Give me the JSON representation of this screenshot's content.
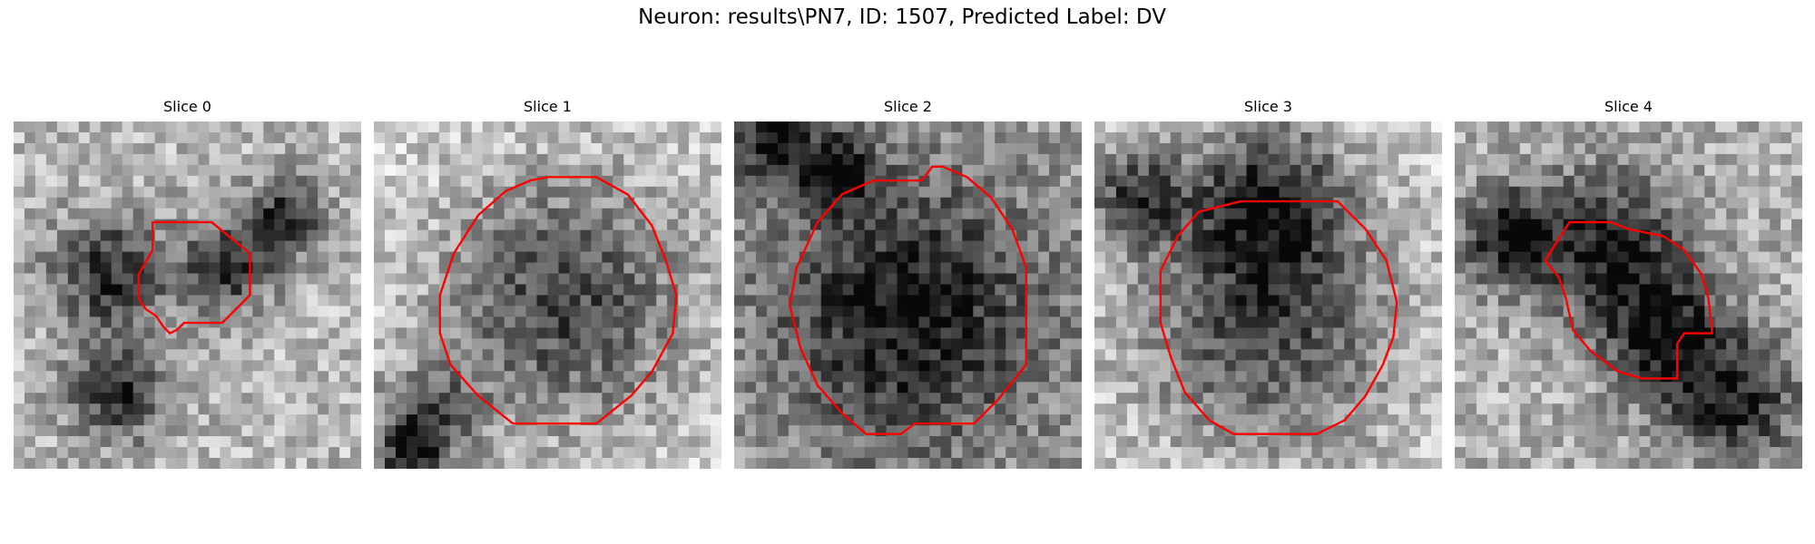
{
  "figure": {
    "title": "Neuron: results\\PN7, ID: 1507, Predicted Label: DV",
    "contour_color": "#ff0000"
  },
  "slices": [
    {
      "title": "Slice 0",
      "intensity_profile": {
        "seed": 11,
        "dark_blobs": [
          [
            0.28,
            0.44,
            0.12
          ],
          [
            0.3,
            0.78,
            0.1
          ],
          [
            0.62,
            0.42,
            0.09
          ],
          [
            0.78,
            0.28,
            0.08
          ]
        ],
        "base": 0.72
      },
      "contour": [
        [
          0.4,
          0.29
        ],
        [
          0.57,
          0.29
        ],
        [
          0.68,
          0.38
        ],
        [
          0.68,
          0.5
        ],
        [
          0.6,
          0.58
        ],
        [
          0.49,
          0.58
        ],
        [
          0.47,
          0.6
        ],
        [
          0.45,
          0.61
        ],
        [
          0.43,
          0.59
        ],
        [
          0.41,
          0.56
        ],
        [
          0.38,
          0.54
        ],
        [
          0.36,
          0.51
        ],
        [
          0.36,
          0.44
        ],
        [
          0.4,
          0.37
        ]
      ]
    },
    {
      "title": "Slice 1",
      "intensity_profile": {
        "seed": 23,
        "dark_blobs": [
          [
            0.55,
            0.52,
            0.25
          ],
          [
            0.15,
            0.86,
            0.1
          ],
          [
            0.1,
            0.98,
            0.06
          ]
        ],
        "base": 0.82
      },
      "contour": [
        [
          0.5,
          0.16
        ],
        [
          0.64,
          0.16
        ],
        [
          0.73,
          0.21
        ],
        [
          0.8,
          0.3
        ],
        [
          0.84,
          0.4
        ],
        [
          0.87,
          0.5
        ],
        [
          0.86,
          0.61
        ],
        [
          0.8,
          0.72
        ],
        [
          0.74,
          0.79
        ],
        [
          0.64,
          0.87
        ],
        [
          0.4,
          0.87
        ],
        [
          0.3,
          0.79
        ],
        [
          0.22,
          0.7
        ],
        [
          0.19,
          0.61
        ],
        [
          0.19,
          0.5
        ],
        [
          0.23,
          0.38
        ],
        [
          0.3,
          0.27
        ],
        [
          0.38,
          0.2
        ],
        [
          0.45,
          0.17
        ]
      ]
    },
    {
      "title": "Slice 2",
      "intensity_profile": {
        "seed": 37,
        "dark_blobs": [
          [
            0.5,
            0.55,
            0.27
          ],
          [
            0.12,
            0.07,
            0.08
          ],
          [
            0.3,
            0.14,
            0.07
          ]
        ],
        "base": 0.62
      },
      "contour": [
        [
          0.54,
          0.17
        ],
        [
          0.57,
          0.13
        ],
        [
          0.6,
          0.13
        ],
        [
          0.67,
          0.16
        ],
        [
          0.74,
          0.22
        ],
        [
          0.8,
          0.31
        ],
        [
          0.84,
          0.42
        ],
        [
          0.84,
          0.7
        ],
        [
          0.76,
          0.8
        ],
        [
          0.69,
          0.87
        ],
        [
          0.52,
          0.87
        ],
        [
          0.48,
          0.9
        ],
        [
          0.38,
          0.9
        ],
        [
          0.31,
          0.84
        ],
        [
          0.24,
          0.76
        ],
        [
          0.19,
          0.65
        ],
        [
          0.16,
          0.53
        ],
        [
          0.18,
          0.42
        ],
        [
          0.24,
          0.29
        ],
        [
          0.31,
          0.21
        ],
        [
          0.4,
          0.17
        ]
      ]
    },
    {
      "title": "Slice 3",
      "intensity_profile": {
        "seed": 51,
        "dark_blobs": [
          [
            0.5,
            0.22,
            0.16
          ],
          [
            0.5,
            0.58,
            0.26
          ],
          [
            0.12,
            0.22,
            0.1
          ]
        ],
        "base": 0.82
      },
      "contour": [
        [
          0.42,
          0.23
        ],
        [
          0.7,
          0.23
        ],
        [
          0.78,
          0.31
        ],
        [
          0.84,
          0.4
        ],
        [
          0.87,
          0.52
        ],
        [
          0.86,
          0.62
        ],
        [
          0.83,
          0.7
        ],
        [
          0.78,
          0.79
        ],
        [
          0.72,
          0.86
        ],
        [
          0.64,
          0.9
        ],
        [
          0.4,
          0.9
        ],
        [
          0.33,
          0.86
        ],
        [
          0.26,
          0.78
        ],
        [
          0.22,
          0.68
        ],
        [
          0.19,
          0.58
        ],
        [
          0.19,
          0.43
        ],
        [
          0.24,
          0.33
        ],
        [
          0.3,
          0.26
        ]
      ]
    },
    {
      "title": "Slice 4",
      "intensity_profile": {
        "seed": 67,
        "dark_blobs": [
          [
            0.45,
            0.36,
            0.16
          ],
          [
            0.15,
            0.33,
            0.1
          ],
          [
            0.6,
            0.62,
            0.12
          ],
          [
            0.8,
            0.8,
            0.14
          ]
        ],
        "base": 0.7
      },
      "contour": [
        [
          0.33,
          0.29
        ],
        [
          0.45,
          0.29
        ],
        [
          0.5,
          0.31
        ],
        [
          0.6,
          0.33
        ],
        [
          0.66,
          0.37
        ],
        [
          0.71,
          0.44
        ],
        [
          0.73,
          0.51
        ],
        [
          0.74,
          0.6
        ],
        [
          0.74,
          0.61
        ],
        [
          0.66,
          0.61
        ],
        [
          0.64,
          0.64
        ],
        [
          0.64,
          0.74
        ],
        [
          0.54,
          0.74
        ],
        [
          0.47,
          0.72
        ],
        [
          0.39,
          0.66
        ],
        [
          0.34,
          0.6
        ],
        [
          0.32,
          0.51
        ],
        [
          0.3,
          0.45
        ],
        [
          0.26,
          0.4
        ]
      ]
    }
  ]
}
